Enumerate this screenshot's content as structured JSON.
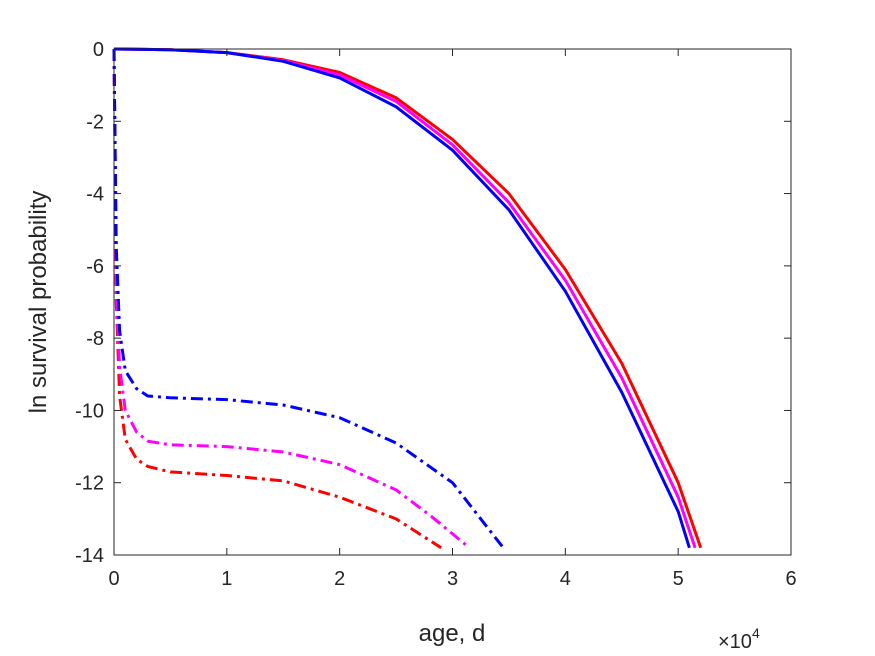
{
  "chart_data": {
    "type": "line",
    "title": "",
    "xlabel": "age, d",
    "ylabel": "ln survival probability",
    "x_exponent_label": "×10",
    "x_exponent_power": "4",
    "xlim": [
      0,
      60000
    ],
    "ylim": [
      -14,
      0
    ],
    "xticks": [
      0,
      10000,
      20000,
      30000,
      40000,
      50000,
      60000
    ],
    "xtick_labels": [
      "0",
      "1",
      "2",
      "3",
      "4",
      "5",
      "6"
    ],
    "yticks": [
      0,
      -2,
      -4,
      -6,
      -8,
      -10,
      -12,
      -14
    ],
    "ytick_labels": [
      "0",
      "-2",
      "-4",
      "-6",
      "-8",
      "-10",
      "-12",
      "-14"
    ],
    "grid": false,
    "series": [
      {
        "color": "#ff0000",
        "style": "solid",
        "x": [
          0,
          5000,
          10000,
          15000,
          20000,
          25000,
          30000,
          35000,
          40000,
          45000,
          50000,
          52000
        ],
        "y": [
          0,
          -0.02,
          -0.1,
          -0.3,
          -0.65,
          -1.35,
          -2.5,
          -4.0,
          -6.1,
          -8.7,
          -12.0,
          -13.8
        ]
      },
      {
        "color": "#ff00ff",
        "style": "solid",
        "x": [
          0,
          5000,
          10000,
          15000,
          20000,
          25000,
          30000,
          35000,
          40000,
          45000,
          50000,
          51500
        ],
        "y": [
          0,
          -0.02,
          -0.1,
          -0.32,
          -0.72,
          -1.45,
          -2.65,
          -4.25,
          -6.4,
          -9.1,
          -12.4,
          -13.8
        ]
      },
      {
        "color": "#0000ff",
        "style": "solid",
        "x": [
          0,
          5000,
          10000,
          15000,
          20000,
          25000,
          30000,
          35000,
          40000,
          45000,
          50000,
          51000
        ],
        "y": [
          0,
          -0.02,
          -0.1,
          -0.34,
          -0.8,
          -1.6,
          -2.8,
          -4.45,
          -6.7,
          -9.5,
          -12.8,
          -13.8
        ]
      },
      {
        "color": "#ff0000",
        "style": "dashdot",
        "x": [
          0,
          200,
          500,
          1000,
          2000,
          3000,
          5000,
          10000,
          15000,
          20000,
          25000,
          29000
        ],
        "y": [
          0,
          -7.0,
          -9.6,
          -10.8,
          -11.35,
          -11.55,
          -11.7,
          -11.8,
          -11.95,
          -12.4,
          -13.0,
          -13.8
        ]
      },
      {
        "color": "#ff00ff",
        "style": "dashdot",
        "x": [
          0,
          200,
          500,
          1000,
          2000,
          3000,
          5000,
          10000,
          15000,
          20000,
          25000,
          28000,
          31500
        ],
        "y": [
          0,
          -6.5,
          -8.8,
          -10.0,
          -10.6,
          -10.85,
          -10.95,
          -11.0,
          -11.15,
          -11.5,
          -12.2,
          -12.9,
          -13.8
        ]
      },
      {
        "color": "#0000ff",
        "style": "dashdot",
        "x": [
          0,
          200,
          500,
          1000,
          2000,
          3000,
          5000,
          10000,
          15000,
          20000,
          25000,
          30000,
          34500
        ],
        "y": [
          0,
          -5.5,
          -7.8,
          -8.9,
          -9.4,
          -9.6,
          -9.65,
          -9.7,
          -9.85,
          -10.2,
          -10.9,
          -12.0,
          -13.8
        ]
      }
    ]
  }
}
